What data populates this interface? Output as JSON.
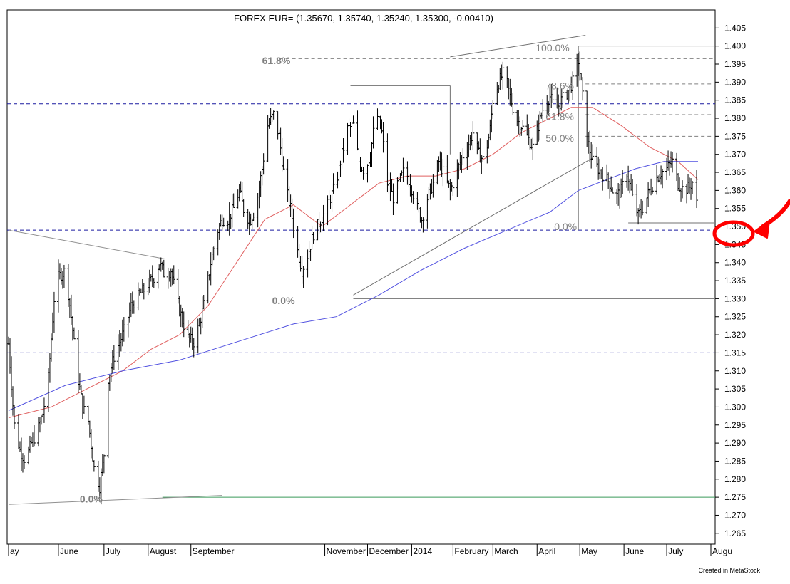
{
  "chart_data": {
    "type": "ohlc",
    "title": "FOREX EUR= (1.35670, 1.35740, 1.35240, 1.35300, -0.00410)",
    "credit": "Created in MetaStock",
    "ylim": [
      1.262,
      1.41
    ],
    "y_ticks": [
      "1.265",
      "1.270",
      "1.275",
      "1.280",
      "1.285",
      "1.290",
      "1.295",
      "1.300",
      "1.305",
      "1.310",
      "1.315",
      "1.320",
      "1.325",
      "1.330",
      "1.335",
      "1.340",
      "1.345",
      "1.350",
      "1.355",
      "1.360",
      "1.365",
      "1.370",
      "1.375",
      "1.380",
      "1.385",
      "1.390",
      "1.395",
      "1.400",
      "1.405"
    ],
    "x_labels": [
      "ay",
      "June",
      "July",
      "August",
      "September",
      "November",
      "December",
      "2014",
      "February",
      "March",
      "April",
      "May",
      "June",
      "July",
      "Augu"
    ],
    "x_label_days": [
      0,
      35,
      67,
      98,
      128,
      222,
      252,
      283,
      312,
      340,
      371,
      401,
      432,
      462,
      493
    ],
    "total_days": 495,
    "closing_note": "approximate daily closes read from the chart, one per trading week segment",
    "close_points": [
      [
        0,
        1.3175
      ],
      [
        4,
        1.295
      ],
      [
        8,
        1.288
      ],
      [
        12,
        1.285
      ],
      [
        16,
        1.29
      ],
      [
        20,
        1.293
      ],
      [
        24,
        1.298
      ],
      [
        28,
        1.308
      ],
      [
        32,
        1.33
      ],
      [
        35,
        1.336
      ],
      [
        40,
        1.338
      ],
      [
        44,
        1.325
      ],
      [
        48,
        1.31
      ],
      [
        52,
        1.3
      ],
      [
        56,
        1.296
      ],
      [
        60,
        1.283
      ],
      [
        64,
        1.278
      ],
      [
        67,
        1.287
      ],
      [
        70,
        1.308
      ],
      [
        74,
        1.314
      ],
      [
        78,
        1.318
      ],
      [
        82,
        1.322
      ],
      [
        86,
        1.328
      ],
      [
        90,
        1.33
      ],
      [
        94,
        1.332
      ],
      [
        98,
        1.334
      ],
      [
        102,
        1.336
      ],
      [
        106,
        1.34
      ],
      [
        110,
        1.336
      ],
      [
        114,
        1.338
      ],
      [
        118,
        1.33
      ],
      [
        122,
        1.324
      ],
      [
        126,
        1.319
      ],
      [
        130,
        1.318
      ],
      [
        134,
        1.323
      ],
      [
        138,
        1.33
      ],
      [
        142,
        1.34
      ],
      [
        146,
        1.348
      ],
      [
        150,
        1.352
      ],
      [
        154,
        1.352
      ],
      [
        158,
        1.355
      ],
      [
        162,
        1.36
      ],
      [
        166,
        1.353
      ],
      [
        170,
        1.352
      ],
      [
        174,
        1.356
      ],
      [
        178,
        1.366
      ],
      [
        182,
        1.378
      ],
      [
        186,
        1.381
      ],
      [
        190,
        1.375
      ],
      [
        194,
        1.362
      ],
      [
        198,
        1.355
      ],
      [
        202,
        1.345
      ],
      [
        206,
        1.338
      ],
      [
        210,
        1.342
      ],
      [
        214,
        1.348
      ],
      [
        218,
        1.351
      ],
      [
        222,
        1.354
      ],
      [
        226,
        1.358
      ],
      [
        230,
        1.362
      ],
      [
        234,
        1.37
      ],
      [
        238,
        1.377
      ],
      [
        242,
        1.378
      ],
      [
        246,
        1.368
      ],
      [
        250,
        1.365
      ],
      [
        254,
        1.37
      ],
      [
        258,
        1.382
      ],
      [
        262,
        1.376
      ],
      [
        266,
        1.362
      ],
      [
        270,
        1.358
      ],
      [
        274,
        1.362
      ],
      [
        278,
        1.366
      ],
      [
        282,
        1.362
      ],
      [
        286,
        1.356
      ],
      [
        290,
        1.352
      ],
      [
        294,
        1.358
      ],
      [
        298,
        1.362
      ],
      [
        302,
        1.368
      ],
      [
        306,
        1.364
      ],
      [
        310,
        1.36
      ],
      [
        314,
        1.364
      ],
      [
        318,
        1.369
      ],
      [
        322,
        1.372
      ],
      [
        326,
        1.376
      ],
      [
        330,
        1.37
      ],
      [
        334,
        1.368
      ],
      [
        338,
        1.377
      ],
      [
        340,
        1.385
      ],
      [
        344,
        1.39
      ],
      [
        348,
        1.393
      ],
      [
        352,
        1.386
      ],
      [
        356,
        1.38
      ],
      [
        360,
        1.378
      ],
      [
        364,
        1.375
      ],
      [
        368,
        1.372
      ],
      [
        372,
        1.378
      ],
      [
        376,
        1.384
      ],
      [
        380,
        1.386
      ],
      [
        384,
        1.382
      ],
      [
        388,
        1.385
      ],
      [
        392,
        1.387
      ],
      [
        396,
        1.39
      ],
      [
        400,
        1.396
      ],
      [
        403,
        1.386
      ],
      [
        406,
        1.374
      ],
      [
        410,
        1.368
      ],
      [
        414,
        1.366
      ],
      [
        418,
        1.364
      ],
      [
        422,
        1.362
      ],
      [
        426,
        1.358
      ],
      [
        430,
        1.36
      ],
      [
        434,
        1.365
      ],
      [
        438,
        1.358
      ],
      [
        442,
        1.353
      ],
      [
        446,
        1.356
      ],
      [
        450,
        1.36
      ],
      [
        454,
        1.363
      ],
      [
        458,
        1.365
      ],
      [
        462,
        1.366
      ],
      [
        466,
        1.368
      ],
      [
        470,
        1.362
      ],
      [
        474,
        1.36
      ],
      [
        478,
        1.361
      ],
      [
        481,
        1.363
      ],
      [
        484,
        1.353
      ]
    ],
    "moving_averages": [
      {
        "color": "#e06060",
        "points": [
          [
            0,
            1.297
          ],
          [
            30,
            1.3
          ],
          [
            60,
            1.306
          ],
          [
            80,
            1.31
          ],
          [
            100,
            1.316
          ],
          [
            120,
            1.32
          ],
          [
            140,
            1.328
          ],
          [
            160,
            1.34
          ],
          [
            180,
            1.352
          ],
          [
            200,
            1.356
          ],
          [
            220,
            1.35
          ],
          [
            240,
            1.356
          ],
          [
            260,
            1.362
          ],
          [
            280,
            1.364
          ],
          [
            300,
            1.364
          ],
          [
            320,
            1.366
          ],
          [
            340,
            1.37
          ],
          [
            360,
            1.376
          ],
          [
            380,
            1.38
          ],
          [
            395,
            1.383
          ],
          [
            410,
            1.383
          ],
          [
            430,
            1.378
          ],
          [
            450,
            1.372
          ],
          [
            470,
            1.368
          ],
          [
            484,
            1.363
          ]
        ]
      },
      {
        "color": "#5050e0",
        "points": [
          [
            0,
            1.299
          ],
          [
            40,
            1.306
          ],
          [
            80,
            1.31
          ],
          [
            120,
            1.313
          ],
          [
            160,
            1.318
          ],
          [
            200,
            1.323
          ],
          [
            230,
            1.325
          ],
          [
            260,
            1.331
          ],
          [
            290,
            1.338
          ],
          [
            320,
            1.344
          ],
          [
            350,
            1.349
          ],
          [
            380,
            1.354
          ],
          [
            400,
            1.36
          ],
          [
            420,
            1.363
          ],
          [
            440,
            1.366
          ],
          [
            460,
            1.368
          ],
          [
            484,
            1.368
          ]
        ]
      }
    ],
    "horizontal_lines": [
      {
        "y": 1.384,
        "color": "#1a1aa0",
        "style": "dashed"
      },
      {
        "y": 1.349,
        "color": "#1a1aa0",
        "style": "dashed"
      },
      {
        "y": 1.315,
        "color": "#1a1aa0",
        "style": "dashed"
      },
      {
        "y": 1.275,
        "color": "#3a9a5a",
        "style": "solid",
        "from_day": 108
      }
    ],
    "trend_lines": [
      {
        "from": [
          0,
          1.349
        ],
        "to": [
          110,
          1.341
        ],
        "color": "#909090"
      },
      {
        "from": [
          0,
          1.273
        ],
        "to": [
          150,
          1.2755
        ],
        "color": "#909090"
      },
      {
        "from": [
          310,
          1.397
        ],
        "to": [
          405,
          1.403
        ],
        "color": "#707070"
      },
      {
        "from": [
          310,
          1.389
        ],
        "to": [
          310,
          1.37
        ],
        "color": "#707070"
      },
      {
        "from": [
          310,
          1.389
        ],
        "to": [
          240,
          1.389
        ],
        "color": "#707070"
      },
      {
        "from": [
          242,
          1.331
        ],
        "to": [
          410,
          1.369
        ],
        "color": "#707070"
      },
      {
        "from": [
          242,
          1.33
        ],
        "to": [
          495,
          1.33
        ],
        "color": "#707070"
      },
      {
        "from": [
          400,
          1.4
        ],
        "to": [
          495,
          1.4
        ],
        "color": "#707070"
      },
      {
        "from": [
          400,
          1.4
        ],
        "to": [
          400,
          1.349
        ],
        "color": "#707070"
      },
      {
        "from": [
          435,
          1.351
        ],
        "to": [
          495,
          1.351
        ],
        "color": "#707070"
      }
    ],
    "fib_lines": [
      {
        "y": 1.3965,
        "from_day": 190,
        "to_day": 495
      },
      {
        "y": 1.3895,
        "from_day": 405,
        "to_day": 495
      },
      {
        "y": 1.381,
        "from_day": 405,
        "to_day": 495
      },
      {
        "y": 1.375,
        "from_day": 405,
        "to_day": 495
      }
    ],
    "fib_labels": [
      {
        "text": "61.8%",
        "day": 178,
        "y": 1.396,
        "strong": true
      },
      {
        "text": "100.0%",
        "day": 370,
        "y": 1.3995,
        "strong": false
      },
      {
        "text": "78.6%",
        "day": 377,
        "y": 1.389,
        "strong": false
      },
      {
        "text": "61.8%",
        "day": 377,
        "y": 1.3805,
        "strong": false
      },
      {
        "text": "50.0%",
        "day": 377,
        "y": 1.3745,
        "strong": false
      },
      {
        "text": "0.0%",
        "day": 383,
        "y": 1.35,
        "strong": false
      },
      {
        "text": "0.0%",
        "day": 185,
        "y": 1.3295,
        "strong": true
      },
      {
        "text": "0.0%",
        "day": 50,
        "y": 1.2745,
        "strong": true,
        "color": "#3a9a5a"
      }
    ],
    "annotation": {
      "type": "circle-arrow",
      "target_tick": "1.350",
      "color": "#ff0000"
    }
  }
}
